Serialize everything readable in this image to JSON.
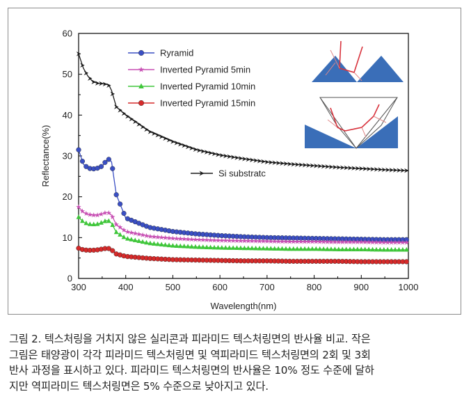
{
  "chart_data": {
    "type": "line",
    "title": "",
    "xlabel": "Wavelength(nm)",
    "ylabel": "Reflectance(%)",
    "xlim": [
      300,
      1000
    ],
    "ylim": [
      0,
      60
    ],
    "xticks": [
      300,
      400,
      500,
      600,
      700,
      800,
      900,
      1000
    ],
    "yticks": [
      0,
      10,
      20,
      30,
      40,
      50,
      60
    ],
    "grid": false,
    "legend_position": "top-left",
    "series": [
      {
        "name": "Ryramid",
        "color": "#3a4fc4",
        "marker": "circle",
        "x": [
          300,
          310,
          320,
          330,
          340,
          350,
          360,
          365,
          370,
          380,
          400,
          450,
          500,
          550,
          600,
          650,
          700,
          750,
          800,
          850,
          900,
          950,
          1000
        ],
        "y": [
          31.5,
          28,
          27,
          26.8,
          27,
          27.5,
          29,
          29.2,
          28.5,
          20.5,
          14.8,
          12.5,
          11.5,
          10.9,
          10.5,
          10.2,
          10,
          9.9,
          9.8,
          9.7,
          9.6,
          9.5,
          9.5
        ]
      },
      {
        "name": "Inverted Pyramid 5min",
        "color": "#c74fb3",
        "marker": "star",
        "x": [
          300,
          310,
          320,
          330,
          340,
          350,
          360,
          365,
          370,
          380,
          400,
          450,
          500,
          550,
          600,
          650,
          700,
          750,
          800,
          850,
          900,
          950,
          1000
        ],
        "y": [
          17.5,
          16.2,
          15.7,
          15.5,
          15.5,
          15.8,
          16.2,
          16,
          15.5,
          13.2,
          11.5,
          10.3,
          9.8,
          9.5,
          9.3,
          9.2,
          9.1,
          9,
          9,
          8.9,
          8.9,
          8.8,
          8.8
        ]
      },
      {
        "name": "Inverted Pyramid 10min",
        "color": "#3fc63a",
        "marker": "triangle",
        "x": [
          300,
          310,
          320,
          330,
          340,
          350,
          360,
          365,
          370,
          380,
          400,
          450,
          500,
          550,
          600,
          650,
          700,
          750,
          800,
          850,
          900,
          950,
          1000
        ],
        "y": [
          15,
          13.8,
          13.3,
          13.2,
          13.3,
          13.7,
          14.2,
          14,
          13.5,
          11.3,
          9.8,
          8.6,
          8,
          7.7,
          7.5,
          7.4,
          7.3,
          7.2,
          7.2,
          7.1,
          7.1,
          7,
          7
        ]
      },
      {
        "name": "Inverted Pyramid 15min",
        "color": "#d62a2a",
        "marker": "circle",
        "x": [
          300,
          310,
          320,
          330,
          340,
          350,
          360,
          365,
          370,
          380,
          400,
          450,
          500,
          550,
          600,
          650,
          700,
          750,
          800,
          850,
          900,
          950,
          1000
        ],
        "y": [
          7.4,
          7,
          6.9,
          6.9,
          7,
          7.2,
          7.4,
          7.3,
          7,
          6,
          5.4,
          4.9,
          4.6,
          4.5,
          4.4,
          4.3,
          4.3,
          4.2,
          4.2,
          4.2,
          4.1,
          4.1,
          4.1
        ]
      },
      {
        "name": "Si substratc",
        "color": "#1a1a1a",
        "marker": "arrow",
        "x": [
          300,
          310,
          320,
          330,
          340,
          350,
          360,
          365,
          370,
          380,
          400,
          450,
          500,
          550,
          600,
          650,
          700,
          750,
          800,
          850,
          900,
          950,
          1000
        ],
        "y": [
          55,
          51.5,
          49.5,
          48.2,
          47.8,
          47.7,
          47.5,
          47.2,
          46,
          42,
          40,
          36,
          33.5,
          31.5,
          30.2,
          29.3,
          28.5,
          28,
          27.6,
          27.2,
          26.9,
          26.6,
          26.4
        ]
      }
    ]
  },
  "legend": {
    "entries": [
      "Ryramid",
      "Inverted Pyramid 5min",
      "Inverted Pyramid 10min",
      "Inverted Pyramid 15min"
    ],
    "si_label": "Si substratc"
  },
  "inset_colors": {
    "fill": "#3a6eb8",
    "rays": "#d8323c",
    "rays_light": "#e08a8a"
  },
  "caption": {
    "lines": [
      "그림 2. 텍스처링을 거치지 않은 실리콘과 피라미드 텍스처링면의 반사율 비교. 작은",
      "그림은 태양광이 각각 피라미드 텍스처링면 및 역피라미드 텍스처링면의 2회 및 3회",
      "반사 과정을 표시하고 있다. 피라미드 텍스처링면의 반사율은 10% 정도 수준에 달하",
      "지만 역피라미드 텍스처링면은 5% 수준으로 낮아지고 있다."
    ]
  }
}
